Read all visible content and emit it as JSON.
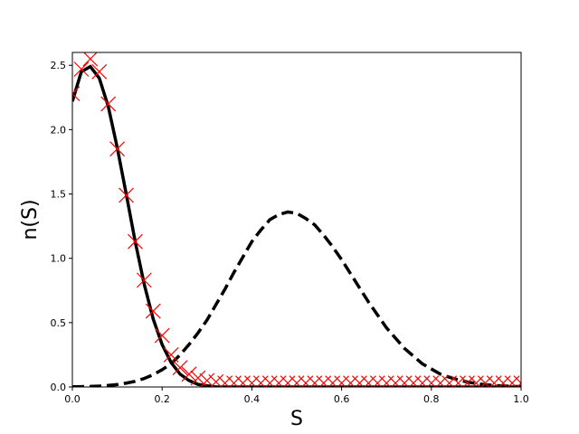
{
  "chart_data": {
    "type": "line",
    "x_label": "S",
    "y_label": "n(S)",
    "xlim": [
      0,
      1
    ],
    "ylim": [
      0,
      2.6
    ],
    "xticks": [
      {
        "value": 0,
        "label": "0.0"
      },
      0.2,
      0.4,
      0.6,
      0.8,
      {
        "value": 1,
        "label": "1.0"
      }
    ],
    "yticks": [
      {
        "value": 0,
        "label": "0.0"
      },
      0.5,
      {
        "value": 1,
        "label": "1.0"
      },
      1.5,
      {
        "value": 2,
        "label": "2.0"
      },
      2.5
    ],
    "x": [
      0,
      0.02,
      0.04,
      0.06,
      0.08,
      0.1,
      0.12,
      0.14,
      0.16,
      0.18,
      0.2,
      0.22,
      0.24,
      0.26,
      0.28,
      0.3,
      0.32,
      0.34,
      0.36,
      0.38,
      0.4,
      0.42,
      0.44,
      0.46,
      0.48,
      0.5,
      0.52,
      0.54,
      0.56,
      0.58,
      0.6,
      0.62,
      0.64,
      0.66,
      0.68,
      0.7,
      0.72,
      0.74,
      0.76,
      0.78,
      0.8,
      0.82,
      0.84,
      0.86,
      0.88,
      0.9,
      0.92,
      0.94,
      0.96,
      0.98,
      1
    ],
    "series": [
      {
        "style": "solid",
        "color": "#000000",
        "values": [
          2.22,
          2.45,
          2.49,
          2.4,
          2.18,
          1.86,
          1.5,
          1.13,
          0.8,
          0.53,
          0.33,
          0.19,
          0.1,
          0.05,
          0.02,
          0.01,
          0,
          0,
          0,
          0,
          0,
          0,
          0,
          0,
          0,
          0,
          0,
          0,
          0,
          0,
          0,
          0,
          0,
          0,
          0,
          0,
          0,
          0,
          0,
          0,
          0,
          0,
          0,
          0,
          0,
          0,
          0,
          0,
          0,
          0,
          0
        ]
      },
      {
        "style": "dashed",
        "color": "#000000",
        "values": [
          0.0015,
          0.003,
          0.004,
          0.007,
          0.012,
          0.019,
          0.03,
          0.044,
          0.066,
          0.095,
          0.134,
          0.18,
          0.25,
          0.33,
          0.42,
          0.52,
          0.64,
          0.76,
          0.89,
          1.01,
          1.13,
          1.22,
          1.3,
          1.34,
          1.36,
          1.35,
          1.31,
          1.26,
          1.18,
          1.09,
          0.99,
          0.88,
          0.77,
          0.66,
          0.56,
          0.46,
          0.38,
          0.3,
          0.24,
          0.18,
          0.14,
          0.1,
          0.076,
          0.055,
          0.039,
          0.027,
          0.018,
          0.012,
          0.008,
          0.005,
          0.003
        ]
      },
      {
        "style": "marker",
        "marker": "x",
        "color": "#ff0000",
        "values": [
          2.28,
          2.47,
          2.55,
          2.45,
          2.2,
          1.85,
          1.49,
          1.13,
          0.83,
          0.59,
          0.4,
          0.25,
          0.15,
          0.1,
          0.07,
          0.05,
          0.04,
          0.03,
          0.03,
          0.03,
          0.03,
          0.03,
          0.03,
          0.03,
          0.03,
          0.03,
          0.03,
          0.03,
          0.03,
          0.03,
          0.03,
          0.03,
          0.03,
          0.03,
          0.03,
          0.03,
          0.03,
          0.03,
          0.03,
          0.03,
          0.03,
          0.03,
          0.03,
          0.03,
          0.03,
          0.03,
          0.03,
          0.03,
          0.03,
          0.03,
          0.03
        ]
      }
    ]
  }
}
